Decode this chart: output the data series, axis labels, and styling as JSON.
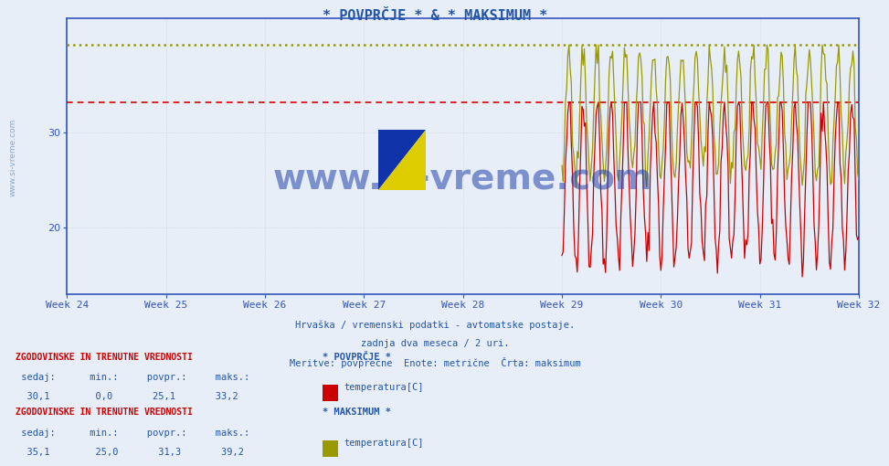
{
  "title": "* POVPRČJE * & * MAKSIMUM *",
  "title_color": "#2255aa",
  "title_fontsize": 11,
  "bg_color": "#e8eef8",
  "plot_bg_color": "#e8eef8",
  "xlim": [
    0,
    672
  ],
  "ylim": [
    13,
    42
  ],
  "yticks": [
    20,
    30
  ],
  "weeks": [
    "Week 24",
    "Week 25",
    "Week 26",
    "Week 27",
    "Week 28",
    "Week 29",
    "Week 30",
    "Week 31",
    "Week 32"
  ],
  "week_positions": [
    0,
    84,
    168,
    252,
    336,
    420,
    504,
    588,
    672
  ],
  "hline_yellow": 39.2,
  "hline_yellow_color": "#999900",
  "hline_red": 33.2,
  "hline_red_color": "#dd0000",
  "avg_color": "#cc0000",
  "max_color": "#999900",
  "avg_label": "temperatura[C]",
  "max_label": "temperatura[C]",
  "avg_min": "0,0",
  "avg_povpr": "25,1",
  "avg_maks": "33,2",
  "avg_sedaj": "30,1",
  "max_min": "25,0",
  "max_povpr": "31,3",
  "max_maks": "39,2",
  "max_sedaj": "35,1",
  "subtitle1": "Hrvaška / vremenski podatki - avtomatske postaje.",
  "subtitle2": "zadnja dva meseca / 2 uri.",
  "subtitle3": "Meritve: povprečne  Enote: metrične  Črta: maksimum",
  "subtitle_color": "#2255aa",
  "text_color": "#2255aa",
  "watermark": "www.si-vreme.com",
  "watermark_color": "#6699cc",
  "legend1_title": "* POVPRČJE *",
  "legend2_title": "* MAKSIMUM *",
  "data_start_x": 420,
  "grid_color": "#ccccdd",
  "axis_color": "#3355bb",
  "logo_color1": "#1133aa",
  "logo_color2": "#ddcc00"
}
